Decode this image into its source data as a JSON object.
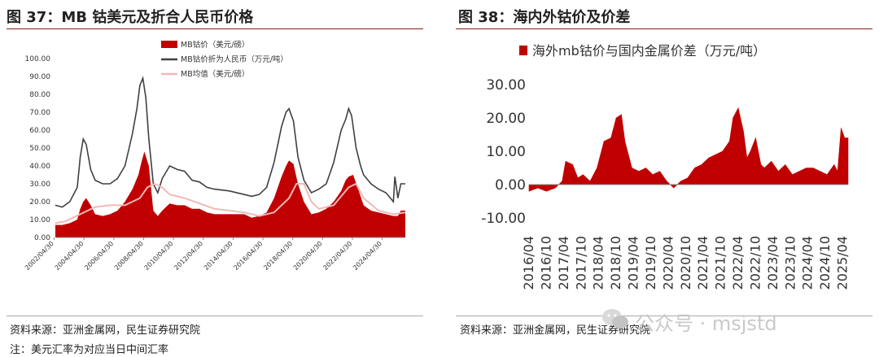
{
  "left_panel": {
    "title": "图 37：MB 钴美元及折合人民币价格",
    "source": "资料来源：亚洲金属网，民生证券研究院",
    "note": "注：美元汇率为对应当日中间汇率"
  },
  "right_panel": {
    "title": "图 38：海内外钴价及价差",
    "source": "资料来源：亚洲金属网，民生证券研究院"
  },
  "watermark": {
    "text": "公众号 · msjstd",
    "icon": "wechat-icon"
  },
  "colors": {
    "red": "#c00000",
    "gray": "#404040",
    "pink": "#f2b8b8",
    "rule": "#8c1d1d"
  },
  "chart_data": [
    {
      "type": "area",
      "title": "",
      "ylim": [
        0,
        100
      ],
      "y_ticks": [
        "0.00",
        "10.00",
        "20.00",
        "30.00",
        "40.00",
        "50.00",
        "60.00",
        "70.00",
        "80.00",
        "90.00",
        "100.00"
      ],
      "x_ticks": [
        "2002/04/30",
        "2004/04/30",
        "2006/04/30",
        "2008/04/30",
        "2010/04/30",
        "2012/04/30",
        "2014/04/30",
        "2016/04/30",
        "2018/04/30",
        "2020/04/30",
        "2022/04/30",
        "2024/04/30"
      ],
      "x_range": [
        2002.33,
        2025.8
      ],
      "legend_position": "top",
      "series": [
        {
          "name": "MB钴价（美元/磅）",
          "style": "area",
          "color": "#c00000",
          "x": [
            2002.33,
            2002.8,
            2003.3,
            2003.8,
            2004.0,
            2004.2,
            2004.4,
            2004.7,
            2005.0,
            2005.5,
            2006.0,
            2006.5,
            2007.0,
            2007.5,
            2007.9,
            2008.1,
            2008.3,
            2008.6,
            2008.9,
            2009.2,
            2009.5,
            2010.0,
            2010.5,
            2011.0,
            2011.5,
            2012.0,
            2012.5,
            2013.0,
            2014.0,
            2015.0,
            2015.5,
            2016.0,
            2016.5,
            2017.0,
            2017.5,
            2017.8,
            2018.0,
            2018.3,
            2018.6,
            2019.0,
            2019.5,
            2020.0,
            2020.5,
            2021.0,
            2021.5,
            2021.8,
            2022.0,
            2022.3,
            2022.6,
            2023.0,
            2023.5,
            2024.0,
            2024.5,
            2025.0,
            2025.3,
            2025.5,
            2025.8
          ],
          "values": [
            7,
            7,
            8,
            10,
            16,
            20,
            22,
            18,
            13,
            12,
            13,
            15,
            20,
            27,
            35,
            42,
            48,
            40,
            15,
            12,
            15,
            19,
            18,
            18,
            16,
            16,
            14,
            13,
            13,
            13,
            11,
            12,
            14,
            22,
            34,
            40,
            43,
            41,
            30,
            20,
            13,
            14,
            16,
            20,
            26,
            32,
            34,
            35,
            28,
            18,
            15,
            14,
            13,
            12,
            12,
            15,
            15
          ]
        },
        {
          "name": "MB钴价折为人民币（万元/吨）",
          "style": "line",
          "color": "#404040",
          "x": [
            2002.33,
            2002.8,
            2003.3,
            2003.8,
            2004.0,
            2004.2,
            2004.4,
            2004.7,
            2005.0,
            2005.5,
            2006.0,
            2006.5,
            2007.0,
            2007.5,
            2007.8,
            2008.0,
            2008.2,
            2008.4,
            2008.6,
            2008.9,
            2009.2,
            2009.5,
            2010.0,
            2010.5,
            2011.0,
            2011.5,
            2012.0,
            2012.5,
            2013.0,
            2014.0,
            2015.0,
            2015.5,
            2016.0,
            2016.5,
            2017.0,
            2017.5,
            2017.8,
            2018.0,
            2018.3,
            2018.6,
            2019.0,
            2019.5,
            2020.0,
            2020.5,
            2021.0,
            2021.5,
            2021.8,
            2022.0,
            2022.2,
            2022.5,
            2022.8,
            2023.0,
            2023.5,
            2024.0,
            2024.5,
            2025.0,
            2025.1,
            2025.3,
            2025.5,
            2025.8
          ],
          "values": [
            18,
            17,
            20,
            28,
            45,
            55,
            52,
            38,
            32,
            30,
            30,
            33,
            40,
            58,
            72,
            85,
            89,
            78,
            55,
            30,
            25,
            33,
            40,
            38,
            37,
            32,
            31,
            28,
            27,
            26,
            24,
            23,
            24,
            28,
            42,
            62,
            70,
            72,
            65,
            45,
            32,
            25,
            27,
            30,
            42,
            60,
            66,
            72,
            68,
            50,
            40,
            35,
            30,
            27,
            25,
            20,
            34,
            22,
            30,
            30
          ]
        },
        {
          "name": "MB均值（美元/磅）",
          "style": "line",
          "color": "#f2b8b8",
          "x": [
            2002.33,
            2003.0,
            2004.0,
            2005.0,
            2006.0,
            2007.0,
            2008.0,
            2008.5,
            2009.0,
            2009.5,
            2010.0,
            2011.0,
            2012.0,
            2013.0,
            2014.0,
            2015.0,
            2016.0,
            2017.0,
            2018.0,
            2018.5,
            2019.0,
            2019.5,
            2020.0,
            2021.0,
            2022.0,
            2022.5,
            2023.0,
            2024.0,
            2025.0,
            2025.8
          ],
          "values": [
            8,
            9,
            13,
            17,
            18,
            18,
            22,
            28,
            30,
            28,
            24,
            22,
            19,
            16,
            15,
            14,
            12,
            14,
            22,
            30,
            30,
            20,
            16,
            18,
            28,
            30,
            22,
            15,
            13,
            14
          ]
        }
      ]
    },
    {
      "type": "bar",
      "title": "",
      "ylim": [
        -10,
        30
      ],
      "y_ticks": [
        "-10.00",
        "0.00",
        "10.00",
        "20.00",
        "30.00"
      ],
      "x_ticks": [
        "2016/04",
        "2016/10",
        "2017/04",
        "2017/10",
        "2018/04",
        "2018/10",
        "2019/04",
        "2019/10",
        "2020/04",
        "2020/10",
        "2021/04",
        "2021/10",
        "2022/04",
        "2022/10",
        "2023/04",
        "2023/10",
        "2024/04",
        "2024/10",
        "2025/04"
      ],
      "x_range": [
        2016.25,
        2025.4
      ],
      "legend_position": "top-left",
      "series": [
        {
          "name": "海外mb钴价与国内金属价差（万元/吨）",
          "color": "#c00000",
          "x": [
            2016.25,
            2016.5,
            2016.75,
            2017.0,
            2017.2,
            2017.3,
            2017.5,
            2017.65,
            2017.8,
            2018.0,
            2018.2,
            2018.4,
            2018.6,
            2018.75,
            2018.9,
            2019.0,
            2019.2,
            2019.4,
            2019.6,
            2019.8,
            2020.0,
            2020.2,
            2020.4,
            2020.6,
            2020.8,
            2021.0,
            2021.2,
            2021.4,
            2021.6,
            2021.8,
            2022.0,
            2022.1,
            2022.25,
            2022.4,
            2022.5,
            2022.6,
            2022.75,
            2022.9,
            2023.0,
            2023.2,
            2023.4,
            2023.6,
            2023.8,
            2024.0,
            2024.2,
            2024.4,
            2024.6,
            2024.8,
            2025.0,
            2025.1,
            2025.2,
            2025.3,
            2025.4
          ],
          "values": [
            -2,
            -1,
            -2,
            -1,
            1,
            7,
            6,
            2,
            3,
            1,
            5,
            13,
            14,
            20,
            21,
            13,
            5,
            4,
            5,
            3,
            4,
            1,
            -1,
            1,
            2,
            5,
            6,
            8,
            9,
            10,
            13,
            20,
            23,
            16,
            8,
            10,
            14,
            6,
            5,
            7,
            4,
            6,
            3,
            4,
            5,
            5,
            4,
            3,
            6,
            4,
            17,
            14,
            14
          ]
        }
      ]
    }
  ]
}
